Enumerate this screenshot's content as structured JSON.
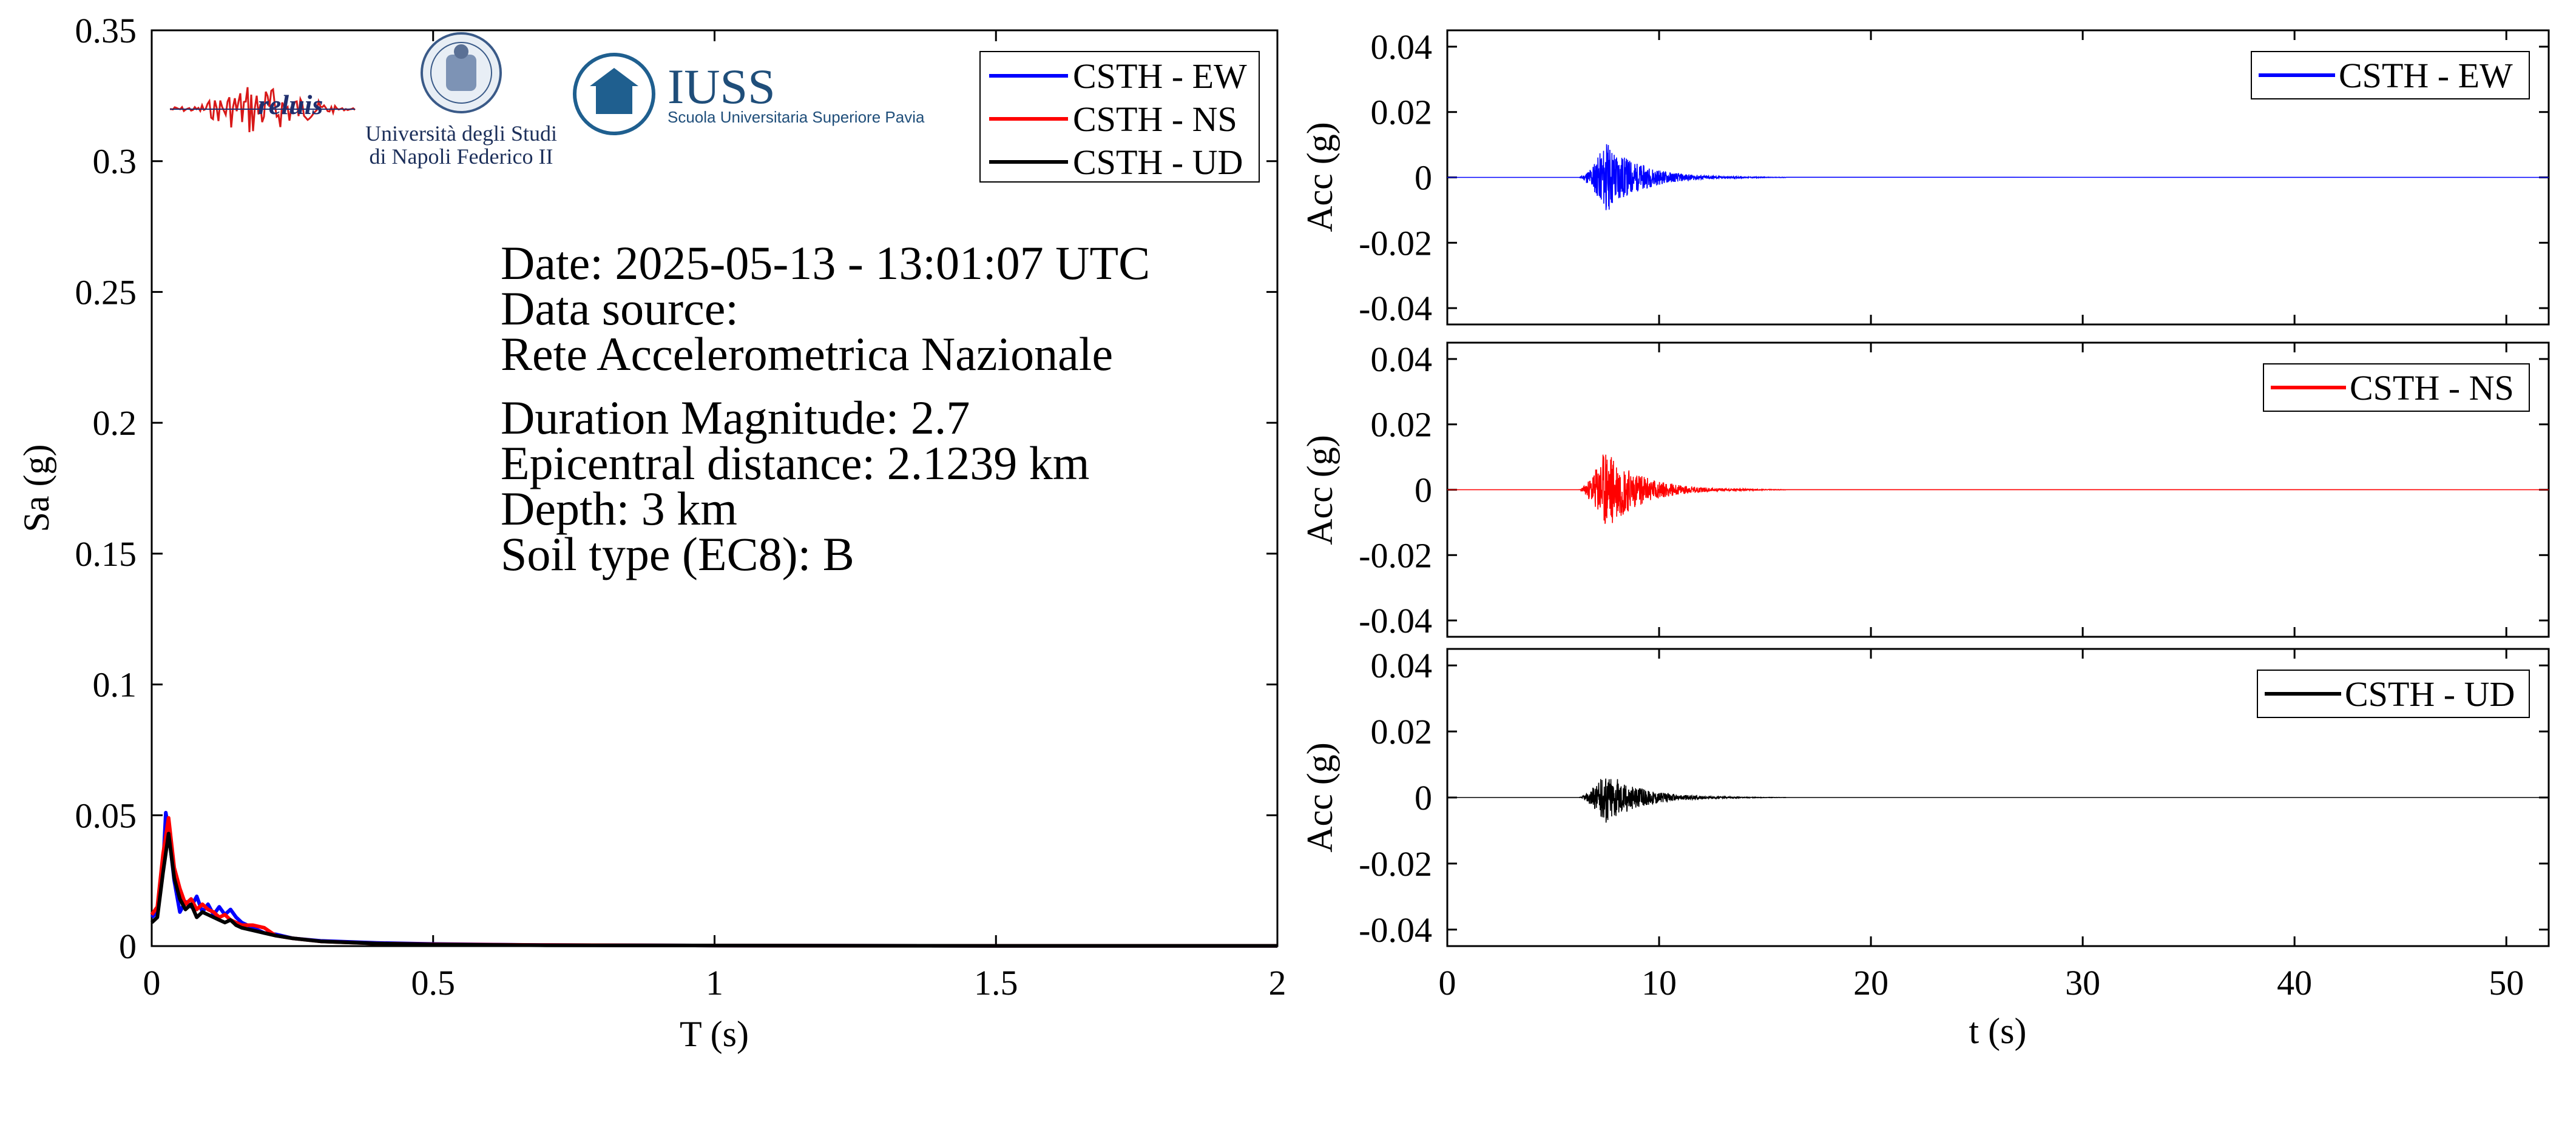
{
  "colors": {
    "ew": "#0000ff",
    "ns": "#ff0000",
    "ud": "#000000",
    "axis": "#000000"
  },
  "logos": {
    "reluis": "reluis",
    "unina_line1": "Università degli Studi",
    "unina_line2": "di Napoli Federico II",
    "iuss_name": "IUSS",
    "iuss_sub": "Scuola Universitaria Superiore Pavia"
  },
  "info": {
    "date": "Date: 2025-05-13 - 13:01:07 UTC",
    "source_label": "Data source:",
    "source_value": "Rete Accelerometrica Nazionale",
    "magnitude": "Duration Magnitude: 2.7",
    "distance": "Epicentral distance: 2.1239 km",
    "depth": "Depth: 3 km",
    "soil": "Soil type (EC8): B"
  },
  "chart_data": [
    {
      "type": "line",
      "xlabel": "T (s)",
      "ylabel": "Sa (g)",
      "xlim": [
        0,
        2
      ],
      "ylim": [
        0,
        0.35
      ],
      "xticks": [
        0,
        0.5,
        1,
        1.5,
        2
      ],
      "xtick_labels": [
        "0",
        "0.5",
        "1",
        "1.5",
        "2"
      ],
      "yticks": [
        0,
        0.05,
        0.1,
        0.15,
        0.2,
        0.25,
        0.3,
        0.35
      ],
      "ytick_labels": [
        "0",
        "0.05",
        "0.1",
        "0.15",
        "0.2",
        "0.25",
        "0.3",
        "0.35"
      ],
      "legend_position": "top-right",
      "series": [
        {
          "name": "CSTH - EW",
          "color": "#0000ff",
          "x": [
            0,
            0.01,
            0.02,
            0.025,
            0.03,
            0.04,
            0.05,
            0.06,
            0.07,
            0.08,
            0.09,
            0.1,
            0.11,
            0.12,
            0.13,
            0.14,
            0.15,
            0.16,
            0.18,
            0.2,
            0.22,
            0.25,
            0.3,
            0.4,
            0.5,
            0.7,
            1.0,
            1.5,
            2.0
          ],
          "y": [
            0.011,
            0.013,
            0.03,
            0.051,
            0.044,
            0.025,
            0.013,
            0.017,
            0.015,
            0.019,
            0.013,
            0.016,
            0.012,
            0.015,
            0.012,
            0.014,
            0.011,
            0.009,
            0.007,
            0.005,
            0.0045,
            0.003,
            0.002,
            0.0012,
            0.0008,
            0.0004,
            0.0002,
            0.0001,
            0.0001
          ]
        },
        {
          "name": "CSTH - NS",
          "color": "#ff0000",
          "x": [
            0,
            0.01,
            0.02,
            0.03,
            0.04,
            0.05,
            0.06,
            0.07,
            0.08,
            0.09,
            0.1,
            0.11,
            0.12,
            0.13,
            0.14,
            0.15,
            0.16,
            0.18,
            0.2,
            0.22,
            0.25,
            0.3,
            0.4,
            0.5,
            0.7,
            1.0,
            1.5,
            2.0
          ],
          "y": [
            0.012,
            0.015,
            0.035,
            0.049,
            0.03,
            0.022,
            0.016,
            0.018,
            0.014,
            0.016,
            0.014,
            0.013,
            0.011,
            0.012,
            0.01,
            0.009,
            0.008,
            0.008,
            0.007,
            0.004,
            0.003,
            0.0018,
            0.001,
            0.0007,
            0.0004,
            0.0002,
            0.0001,
            0.0001
          ]
        },
        {
          "name": "CSTH - UD",
          "color": "#000000",
          "x": [
            0,
            0.01,
            0.02,
            0.03,
            0.04,
            0.05,
            0.06,
            0.07,
            0.08,
            0.09,
            0.1,
            0.11,
            0.12,
            0.13,
            0.14,
            0.15,
            0.16,
            0.18,
            0.2,
            0.22,
            0.25,
            0.3,
            0.4,
            0.5,
            0.7,
            1.0,
            1.5,
            2.0
          ],
          "y": [
            0.009,
            0.011,
            0.028,
            0.043,
            0.026,
            0.018,
            0.014,
            0.016,
            0.011,
            0.013,
            0.012,
            0.011,
            0.01,
            0.009,
            0.01,
            0.008,
            0.007,
            0.006,
            0.005,
            0.004,
            0.003,
            0.0018,
            0.001,
            0.0006,
            0.0003,
            0.0002,
            0.0001,
            0.0001
          ]
        }
      ]
    },
    {
      "type": "line",
      "xlabel": "",
      "ylabel": "Acc (g)",
      "xlim": [
        0,
        52
      ],
      "ylim": [
        -0.045,
        0.045
      ],
      "yticks": [
        -0.04,
        -0.02,
        0,
        0.02,
        0.04
      ],
      "ytick_labels": [
        "-0.04",
        "-0.02",
        "0",
        "0.02",
        "0.04"
      ],
      "legend_position": "top-right",
      "series": [
        {
          "name": "CSTH - EW",
          "color": "#0000ff",
          "peak": 0.011,
          "onset": 6.2,
          "peak_time": 7.5
        }
      ]
    },
    {
      "type": "line",
      "xlabel": "",
      "ylabel": "Acc (g)",
      "xlim": [
        0,
        52
      ],
      "ylim": [
        -0.045,
        0.045
      ],
      "yticks": [
        -0.04,
        -0.02,
        0,
        0.02,
        0.04
      ],
      "ytick_labels": [
        "-0.04",
        "-0.02",
        "0",
        "0.02",
        "0.04"
      ],
      "legend_position": "top-right",
      "series": [
        {
          "name": "CSTH - NS",
          "color": "#ff0000",
          "peak": 0.013,
          "onset": 6.2,
          "peak_time": 7.5
        }
      ]
    },
    {
      "type": "line",
      "xlabel": "t (s)",
      "ylabel": "Acc (g)",
      "xlim": [
        0,
        52
      ],
      "ylim": [
        -0.045,
        0.045
      ],
      "xticks": [
        0,
        10,
        20,
        30,
        40,
        50
      ],
      "xtick_labels": [
        "0",
        "10",
        "20",
        "30",
        "40",
        "50"
      ],
      "yticks": [
        -0.04,
        -0.02,
        0,
        0.02,
        0.04
      ],
      "ytick_labels": [
        "-0.04",
        "-0.02",
        "0",
        "0.02",
        "0.04"
      ],
      "legend_position": "top-right",
      "series": [
        {
          "name": "CSTH - UD",
          "color": "#000000",
          "peak": 0.008,
          "onset": 6.2,
          "peak_time": 7.5
        }
      ]
    }
  ]
}
